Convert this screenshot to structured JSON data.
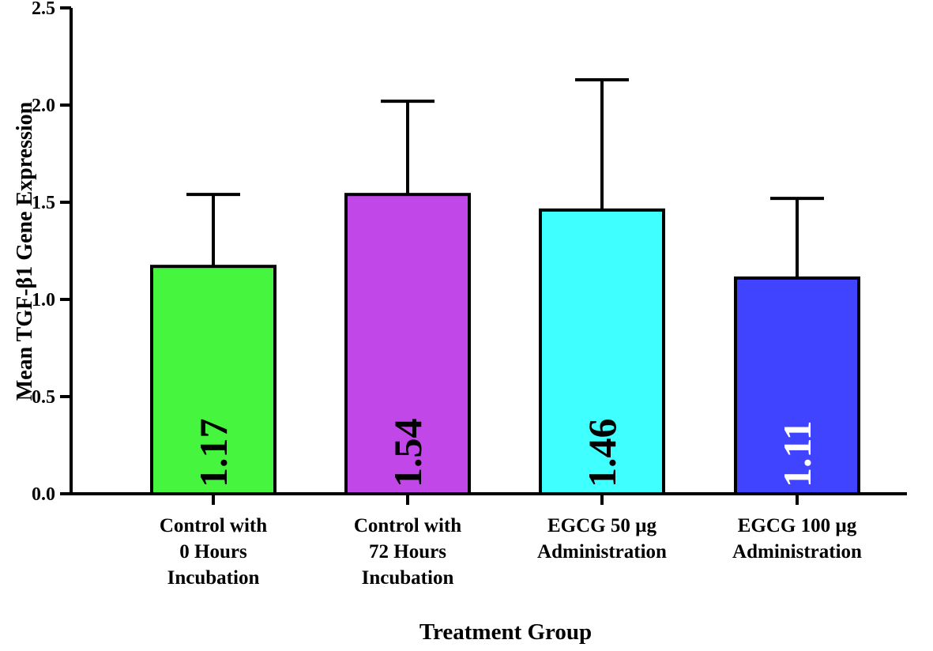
{
  "chart_data": {
    "type": "bar",
    "title": "",
    "xlabel": "Treatment Group",
    "ylabel": "Mean TGF-β1 Gene Expression",
    "ylim": [
      0,
      2.5
    ],
    "yticks": [
      "0.0",
      "0.5",
      "1.0",
      "1.5",
      "2.0",
      "2.5"
    ],
    "grid": false,
    "categories": [
      [
        "Control with",
        "0 Hours",
        "Incubation"
      ],
      [
        "Control with",
        "72 Hours",
        "Incubation"
      ],
      [
        "EGCG 50 µg",
        "Administration"
      ],
      [
        "EGCG 100 µg",
        "Administration"
      ]
    ],
    "values": [
      1.17,
      1.54,
      1.46,
      1.11
    ],
    "error_upper": [
      1.54,
      2.02,
      2.13,
      1.52
    ],
    "value_labels": [
      "1.17",
      "1.54",
      "1.46",
      "1.11"
    ],
    "bar_colors": [
      "#45f53e",
      "#c147e9",
      "#40ffff",
      "#4044ff"
    ],
    "value_label_colors": [
      "#000000",
      "#000000",
      "#000000",
      "#ffffff"
    ]
  }
}
